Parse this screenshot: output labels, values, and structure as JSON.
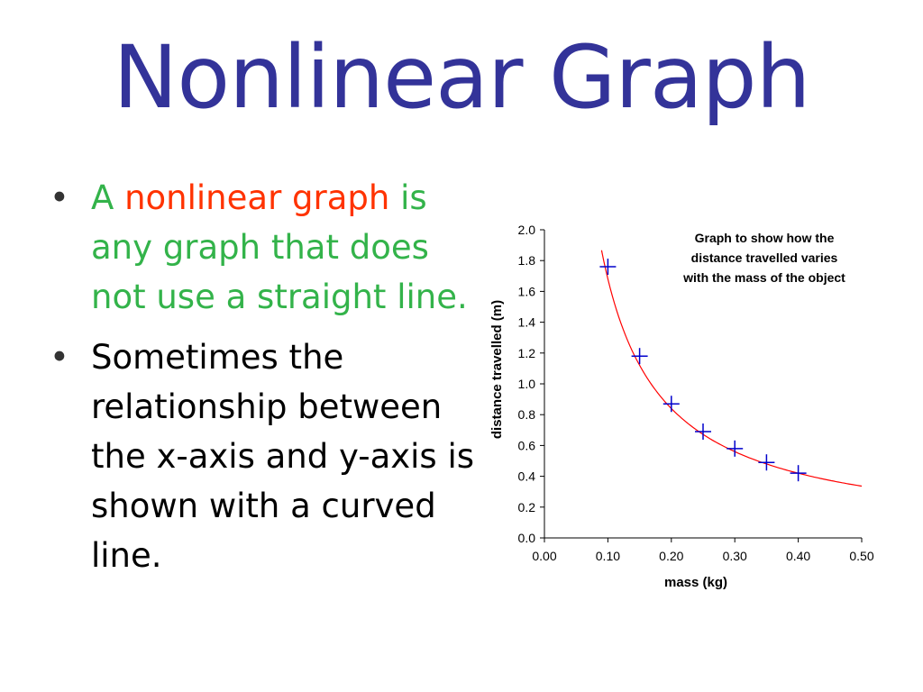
{
  "slide": {
    "title": "Nonlinear Graph",
    "bullet1": {
      "pre": "A ",
      "highlight": "nonlinear graph",
      "post": " is any graph that does not use a straight line."
    },
    "bullet2": "Sometimes the relationship between the x-axis and y-axis is shown with a curved line."
  },
  "colors": {
    "title": "#333399",
    "bullet1_text": "#33b34a",
    "highlight": "#ff3300",
    "curve": "#ff0000",
    "markers": "#0000cc"
  },
  "chart_data": {
    "type": "scatter",
    "title": "Graph to show how the distance travelled varies with the mass of the object",
    "title_lines": [
      "Graph to show how the",
      "distance travelled varies",
      "with the mass of the object"
    ],
    "xlabel": "mass (kg)",
    "ylabel": "distance travelled (m)",
    "xlim": [
      0,
      0.5
    ],
    "ylim": [
      0,
      2.0
    ],
    "x_ticks": [
      "0.00",
      "0.10",
      "0.20",
      "0.30",
      "0.40",
      "0.50"
    ],
    "y_ticks": [
      "0.0",
      "0.2",
      "0.4",
      "0.6",
      "0.8",
      "1.0",
      "1.2",
      "1.4",
      "1.6",
      "1.8",
      "2.0"
    ],
    "grid": false,
    "points": {
      "x": [
        0.1,
        0.15,
        0.2,
        0.25,
        0.3,
        0.35,
        0.4
      ],
      "y": [
        1.76,
        1.18,
        0.87,
        0.69,
        0.58,
        0.49,
        0.42
      ]
    },
    "curve": {
      "x": [
        0.09,
        0.1,
        0.12,
        0.15,
        0.18,
        0.2,
        0.25,
        0.3,
        0.35,
        0.4,
        0.45,
        0.5
      ],
      "y": [
        2.0,
        1.8,
        1.5,
        1.2,
        1.0,
        0.89,
        0.7,
        0.58,
        0.49,
        0.42,
        0.37,
        0.34
      ]
    }
  }
}
